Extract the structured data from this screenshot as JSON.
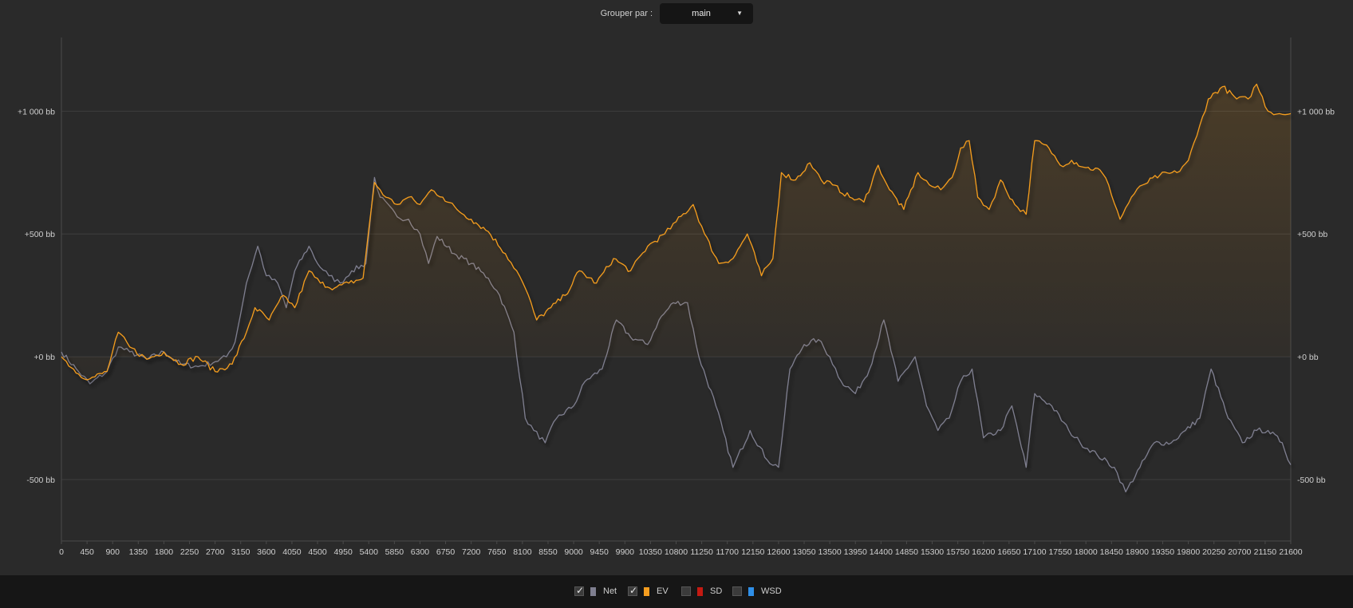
{
  "toolbar": {
    "group_label": "Grouper par :",
    "group_value": "main",
    "arrow_icon": "triangle-down-icon"
  },
  "legend": {
    "items": [
      {
        "label": "Net",
        "checked": true,
        "color": "#7f7f90"
      },
      {
        "label": "EV",
        "checked": true,
        "color": "#f59d1f"
      },
      {
        "label": "SD",
        "checked": false,
        "color": "#c41a12"
      },
      {
        "label": "WSD",
        "checked": false,
        "color": "#2f8fe8"
      }
    ],
    "check_glyph": "✓"
  },
  "chart_data": {
    "type": "line",
    "xlim": [
      0,
      21600
    ],
    "ylim": [
      -750,
      1300
    ],
    "x_ticks": [
      "0",
      "450",
      "900",
      "1350",
      "1800",
      "2250",
      "2700",
      "3150",
      "3600",
      "4050",
      "4500",
      "4950",
      "5400",
      "5850",
      "6300",
      "6750",
      "7200",
      "7650",
      "8100",
      "8550",
      "9000",
      "9450",
      "9900",
      "10350",
      "10800",
      "11250",
      "11700",
      "12150",
      "12600",
      "13050",
      "13500",
      "13950",
      "14400",
      "14850",
      "15300",
      "15750",
      "16200",
      "16650",
      "17100",
      "17550",
      "18000",
      "18450",
      "18900",
      "19350",
      "19800",
      "20250",
      "20700",
      "21150",
      "21600"
    ],
    "y_ticks": [
      {
        "value": 1000,
        "label": "+1 000 bb"
      },
      {
        "value": 500,
        "label": "+500 bb"
      },
      {
        "value": 0,
        "label": "+0 bb"
      },
      {
        "value": -500,
        "label": "-500 bb"
      }
    ],
    "series": [
      {
        "name": "Net",
        "color": "#7f7f90",
        "points": [
          [
            0,
            20
          ],
          [
            300,
            -60
          ],
          [
            500,
            -110
          ],
          [
            800,
            -60
          ],
          [
            1000,
            40
          ],
          [
            1200,
            20
          ],
          [
            1500,
            -10
          ],
          [
            1800,
            20
          ],
          [
            2100,
            -30
          ],
          [
            2400,
            -40
          ],
          [
            2700,
            -20
          ],
          [
            2900,
            0
          ],
          [
            3050,
            60
          ],
          [
            3250,
            300
          ],
          [
            3450,
            450
          ],
          [
            3600,
            330
          ],
          [
            3800,
            300
          ],
          [
            3950,
            200
          ],
          [
            4100,
            350
          ],
          [
            4350,
            450
          ],
          [
            4500,
            380
          ],
          [
            4700,
            330
          ],
          [
            4900,
            300
          ],
          [
            5100,
            350
          ],
          [
            5350,
            380
          ],
          [
            5500,
            730
          ],
          [
            5600,
            650
          ],
          [
            5900,
            570
          ],
          [
            6100,
            560
          ],
          [
            6300,
            500
          ],
          [
            6450,
            380
          ],
          [
            6600,
            490
          ],
          [
            6900,
            420
          ],
          [
            7200,
            380
          ],
          [
            7500,
            320
          ],
          [
            7700,
            250
          ],
          [
            7950,
            100
          ],
          [
            8150,
            -250
          ],
          [
            8300,
            -300
          ],
          [
            8500,
            -350
          ],
          [
            8700,
            -250
          ],
          [
            9000,
            -200
          ],
          [
            9200,
            -100
          ],
          [
            9500,
            -50
          ],
          [
            9750,
            150
          ],
          [
            10000,
            80
          ],
          [
            10300,
            50
          ],
          [
            10500,
            150
          ],
          [
            10750,
            220
          ],
          [
            11000,
            220
          ],
          [
            11200,
            0
          ],
          [
            11500,
            -200
          ],
          [
            11800,
            -450
          ],
          [
            12100,
            -300
          ],
          [
            12400,
            -420
          ],
          [
            12600,
            -450
          ],
          [
            12800,
            -50
          ],
          [
            13050,
            50
          ],
          [
            13300,
            70
          ],
          [
            13500,
            0
          ],
          [
            13700,
            -100
          ],
          [
            13950,
            -150
          ],
          [
            14200,
            -50
          ],
          [
            14450,
            150
          ],
          [
            14700,
            -100
          ],
          [
            15000,
            0
          ],
          [
            15200,
            -200
          ],
          [
            15400,
            -300
          ],
          [
            15600,
            -250
          ],
          [
            15800,
            -100
          ],
          [
            16000,
            -50
          ],
          [
            16200,
            -330
          ],
          [
            16500,
            -300
          ],
          [
            16700,
            -200
          ],
          [
            16950,
            -450
          ],
          [
            17100,
            -150
          ],
          [
            17400,
            -200
          ],
          [
            17700,
            -300
          ],
          [
            17900,
            -350
          ],
          [
            18200,
            -400
          ],
          [
            18500,
            -450
          ],
          [
            18700,
            -550
          ],
          [
            18950,
            -450
          ],
          [
            19200,
            -350
          ],
          [
            19500,
            -350
          ],
          [
            19750,
            -300
          ],
          [
            20000,
            -250
          ],
          [
            20200,
            -50
          ],
          [
            20500,
            -250
          ],
          [
            20750,
            -350
          ],
          [
            21000,
            -300
          ],
          [
            21200,
            -300
          ],
          [
            21450,
            -350
          ],
          [
            21600,
            -440
          ]
        ]
      },
      {
        "name": "EV",
        "color": "#f59d1f",
        "points": [
          [
            0,
            0
          ],
          [
            300,
            -70
          ],
          [
            500,
            -90
          ],
          [
            800,
            -60
          ],
          [
            1000,
            100
          ],
          [
            1200,
            40
          ],
          [
            1500,
            -10
          ],
          [
            1800,
            20
          ],
          [
            2100,
            -30
          ],
          [
            2400,
            0
          ],
          [
            2700,
            -60
          ],
          [
            3000,
            -30
          ],
          [
            3250,
            100
          ],
          [
            3400,
            200
          ],
          [
            3650,
            150
          ],
          [
            3900,
            250
          ],
          [
            4100,
            200
          ],
          [
            4350,
            350
          ],
          [
            4550,
            300
          ],
          [
            4800,
            280
          ],
          [
            5050,
            300
          ],
          [
            5300,
            320
          ],
          [
            5500,
            710
          ],
          [
            5700,
            650
          ],
          [
            5900,
            620
          ],
          [
            6100,
            650
          ],
          [
            6300,
            620
          ],
          [
            6500,
            680
          ],
          [
            6700,
            650
          ],
          [
            6950,
            600
          ],
          [
            7200,
            560
          ],
          [
            7500,
            510
          ],
          [
            7800,
            420
          ],
          [
            8000,
            350
          ],
          [
            8150,
            280
          ],
          [
            8350,
            150
          ],
          [
            8600,
            200
          ],
          [
            8850,
            250
          ],
          [
            9100,
            350
          ],
          [
            9400,
            300
          ],
          [
            9700,
            400
          ],
          [
            10000,
            350
          ],
          [
            10300,
            450
          ],
          [
            10600,
            500
          ],
          [
            10800,
            550
          ],
          [
            11100,
            620
          ],
          [
            11300,
            500
          ],
          [
            11550,
            380
          ],
          [
            11800,
            400
          ],
          [
            12050,
            500
          ],
          [
            12300,
            330
          ],
          [
            12500,
            400
          ],
          [
            12650,
            750
          ],
          [
            12900,
            720
          ],
          [
            13150,
            790
          ],
          [
            13350,
            720
          ],
          [
            13550,
            700
          ],
          [
            13850,
            650
          ],
          [
            14100,
            630
          ],
          [
            14350,
            780
          ],
          [
            14550,
            680
          ],
          [
            14800,
            600
          ],
          [
            15050,
            750
          ],
          [
            15250,
            700
          ],
          [
            15450,
            680
          ],
          [
            15650,
            730
          ],
          [
            15800,
            850
          ],
          [
            15950,
            880
          ],
          [
            16100,
            650
          ],
          [
            16300,
            600
          ],
          [
            16500,
            720
          ],
          [
            16750,
            620
          ],
          [
            16950,
            580
          ],
          [
            17100,
            880
          ],
          [
            17350,
            850
          ],
          [
            17550,
            780
          ],
          [
            17750,
            800
          ],
          [
            18000,
            770
          ],
          [
            18250,
            760
          ],
          [
            18400,
            700
          ],
          [
            18600,
            560
          ],
          [
            18800,
            650
          ],
          [
            19000,
            700
          ],
          [
            19300,
            740
          ],
          [
            19600,
            750
          ],
          [
            19800,
            800
          ],
          [
            19950,
            900
          ],
          [
            20150,
            1050
          ],
          [
            20400,
            1100
          ],
          [
            20650,
            1050
          ],
          [
            20850,
            1050
          ],
          [
            21000,
            1110
          ],
          [
            21200,
            1000
          ],
          [
            21400,
            990
          ],
          [
            21600,
            990
          ]
        ]
      }
    ]
  }
}
